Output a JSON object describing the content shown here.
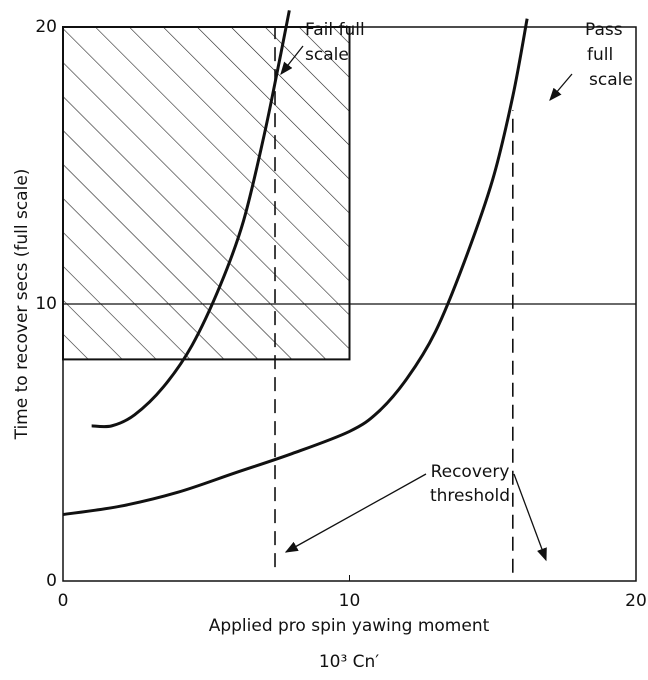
{
  "chart_data": {
    "type": "line",
    "xlabel": "Applied pro spin yawing moment",
    "xlabel2": "10³ Cn′",
    "ylabel": "Time to recover secs (full scale)",
    "xlim": [
      0,
      20
    ],
    "ylim": [
      0,
      20
    ],
    "xticks": [
      0,
      10,
      20
    ],
    "yticks": [
      0,
      10,
      20
    ],
    "hlines": [
      10
    ],
    "region": {
      "x": [
        0,
        10
      ],
      "y": [
        8,
        20
      ]
    },
    "series": [
      {
        "color": "#111111",
        "x": [
          1,
          1.7,
          2.5,
          3.5,
          4.5,
          5.5,
          6.3,
          7,
          7.5,
          7.9
        ],
        "values": [
          5.6,
          5.6,
          6,
          7,
          8.5,
          10.7,
          13,
          16,
          18.5,
          20.6
        ]
      },
      {
        "color": "#111111",
        "x": [
          0,
          2,
          4,
          6,
          8,
          10,
          11,
          12,
          13,
          14,
          15,
          15.7,
          16.2
        ],
        "values": [
          2.4,
          2.7,
          3.2,
          3.9,
          4.6,
          5.4,
          6.1,
          7.3,
          9,
          11.5,
          14.5,
          17.5,
          20.3
        ]
      }
    ],
    "thresholds": [
      {
        "x": 7.4,
        "y": [
          0.5,
          20
        ]
      },
      {
        "x": 15.7,
        "y": [
          0.3,
          17
        ]
      }
    ],
    "annotations": [
      [
        "Fail full",
        "scale"
      ],
      [
        "Pass",
        "full",
        "scale"
      ],
      [
        "Recovery",
        "threshold"
      ]
    ]
  }
}
